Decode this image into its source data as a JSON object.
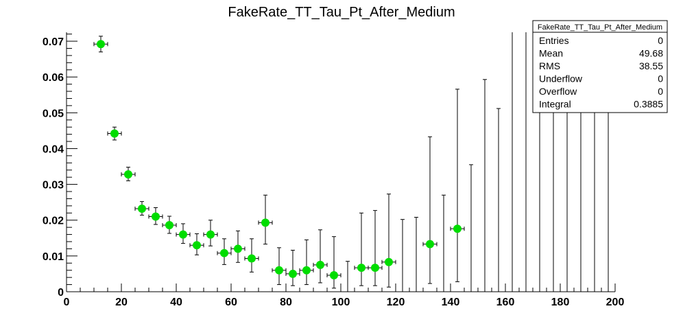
{
  "chart_data": {
    "type": "scatter",
    "title": "FakeRate_TT_Tau_Pt_After_Medium",
    "xlabel": "",
    "ylabel": "",
    "xlim": [
      0,
      200
    ],
    "ylim": [
      0,
      0.0725
    ],
    "x_ticks": [
      "0",
      "20",
      "40",
      "60",
      "80",
      "100",
      "120",
      "140",
      "160",
      "180",
      "200"
    ],
    "y_ticks": [
      "0",
      "0.01",
      "0.02",
      "0.03",
      "0.04",
      "0.05",
      "0.06",
      "0.07"
    ],
    "grid": false,
    "marker_color": "#00dd00",
    "bin_width": 5,
    "points": [
      {
        "x": 12.5,
        "y": 0.0692,
        "err_low": 0.0022,
        "err_high": 0.0022
      },
      {
        "x": 17.5,
        "y": 0.0442,
        "err_low": 0.0018,
        "err_high": 0.0018
      },
      {
        "x": 22.5,
        "y": 0.0328,
        "err_low": 0.0018,
        "err_high": 0.002
      },
      {
        "x": 27.5,
        "y": 0.0232,
        "err_low": 0.0018,
        "err_high": 0.002
      },
      {
        "x": 32.5,
        "y": 0.021,
        "err_low": 0.0022,
        "err_high": 0.0025
      },
      {
        "x": 37.5,
        "y": 0.0186,
        "err_low": 0.0023,
        "err_high": 0.0025
      },
      {
        "x": 42.5,
        "y": 0.016,
        "err_low": 0.0025,
        "err_high": 0.003
      },
      {
        "x": 47.5,
        "y": 0.013,
        "err_low": 0.0027,
        "err_high": 0.0032
      },
      {
        "x": 52.5,
        "y": 0.016,
        "err_low": 0.0032,
        "err_high": 0.004
      },
      {
        "x": 57.5,
        "y": 0.0108,
        "err_low": 0.0032,
        "err_high": 0.004
      },
      {
        "x": 62.5,
        "y": 0.012,
        "err_low": 0.0038,
        "err_high": 0.005
      },
      {
        "x": 67.5,
        "y": 0.0093,
        "err_low": 0.0038,
        "err_high": 0.0055
      },
      {
        "x": 72.5,
        "y": 0.0193,
        "err_low": 0.006,
        "err_high": 0.0077
      },
      {
        "x": 77.5,
        "y": 0.006,
        "err_low": 0.004,
        "err_high": 0.0063
      },
      {
        "x": 82.5,
        "y": 0.005,
        "err_low": 0.0033,
        "err_high": 0.0066
      },
      {
        "x": 87.5,
        "y": 0.006,
        "err_low": 0.004,
        "err_high": 0.0085
      },
      {
        "x": 92.5,
        "y": 0.0075,
        "err_low": 0.005,
        "err_high": 0.0098
      },
      {
        "x": 97.5,
        "y": 0.0046,
        "err_low": 0.0036,
        "err_high": 0.0108
      },
      {
        "x": 102.5,
        "y": 0,
        "err_low": 0,
        "err_high": 0.0085
      },
      {
        "x": 107.5,
        "y": 0.0067,
        "err_low": 0.005,
        "err_high": 0.0153
      },
      {
        "x": 112.5,
        "y": 0.0067,
        "err_low": 0.005,
        "err_high": 0.016
      },
      {
        "x": 117.5,
        "y": 0.0083,
        "err_low": 0.007,
        "err_high": 0.019
      },
      {
        "x": 122.5,
        "y": 0,
        "err_low": 0,
        "err_high": 0.0202
      },
      {
        "x": 127.5,
        "y": 0,
        "err_low": 0,
        "err_high": 0.0208
      },
      {
        "x": 132.5,
        "y": 0.0133,
        "err_low": 0.011,
        "err_high": 0.03
      },
      {
        "x": 137.5,
        "y": 0,
        "err_low": 0,
        "err_high": 0.027
      },
      {
        "x": 142.5,
        "y": 0.0176,
        "err_low": 0.0148,
        "err_high": 0.039
      },
      {
        "x": 147.5,
        "y": 0,
        "err_low": 0,
        "err_high": 0.0355
      },
      {
        "x": 152.5,
        "y": 0,
        "err_low": 0,
        "err_high": 0.0593
      },
      {
        "x": 157.5,
        "y": 0,
        "err_low": 0,
        "err_high": 0.0512
      },
      {
        "x": 162.5,
        "y": 0,
        "err_low": 0,
        "err_high": 0.08
      },
      {
        "x": 167.5,
        "y": 0,
        "err_low": 0,
        "err_high": 0.08
      },
      {
        "x": 172.5,
        "y": 0,
        "err_low": 0,
        "err_high": 0.08
      },
      {
        "x": 177.5,
        "y": 0,
        "err_low": 0,
        "err_high": 0.08
      },
      {
        "x": 182.5,
        "y": 0,
        "err_low": 0,
        "err_high": 0.08
      },
      {
        "x": 187.5,
        "y": 0,
        "err_low": 0,
        "err_high": 0.08
      },
      {
        "x": 192.5,
        "y": 0,
        "err_low": 0,
        "err_high": 0.08
      },
      {
        "x": 197.5,
        "y": 0,
        "err_low": 0,
        "err_high": 0.08
      }
    ],
    "stats_box": {
      "title": "FakeRate_TT_Tau_Pt_After_Medium",
      "rows": [
        {
          "label": "Entries",
          "value": "0"
        },
        {
          "label": "Mean",
          "value": "49.68"
        },
        {
          "label": "RMS",
          "value": "38.55"
        },
        {
          "label": "Underflow",
          "value": "0"
        },
        {
          "label": "Overflow",
          "value": "0"
        },
        {
          "label": "Integral",
          "value": "0.3885"
        }
      ]
    }
  }
}
